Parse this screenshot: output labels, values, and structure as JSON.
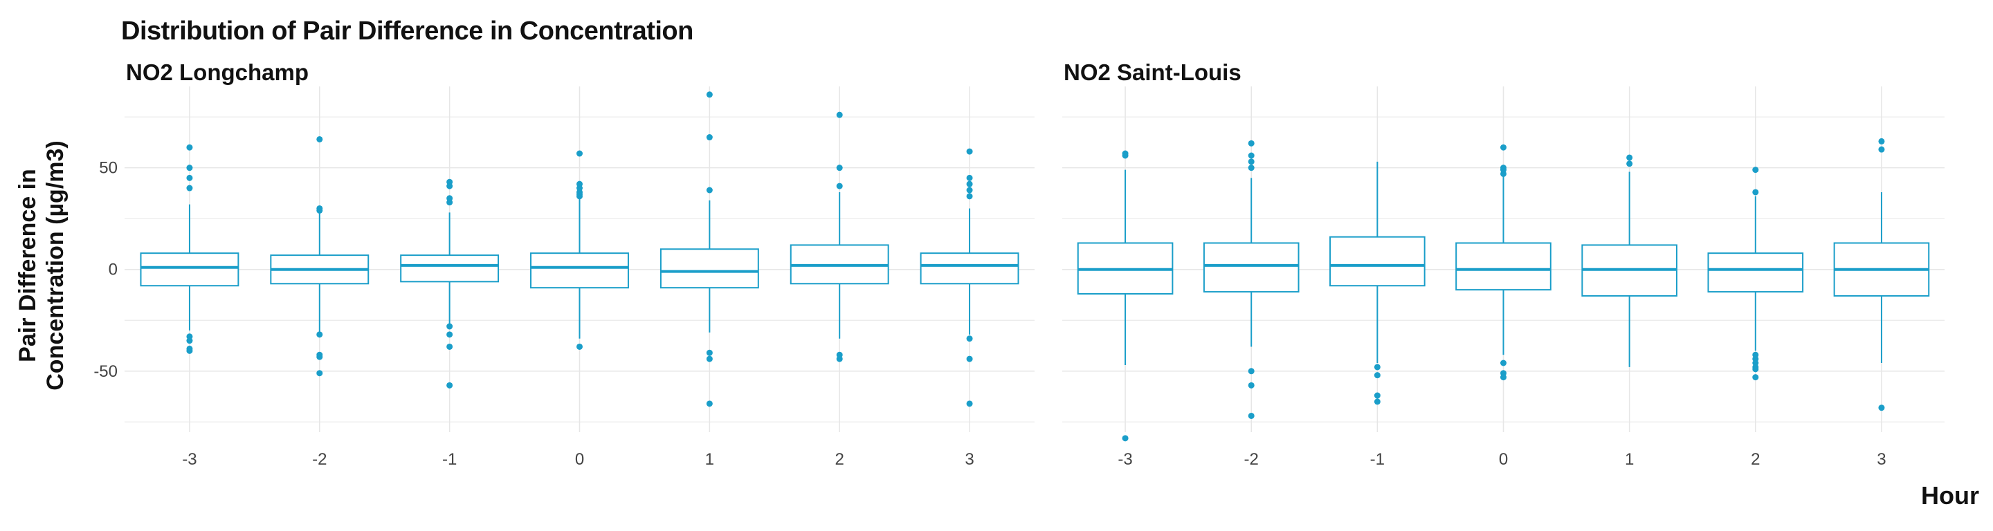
{
  "title": "Distribution of Pair Difference in Concentration",
  "ylabel": "Pair Difference in\nConcentration (µg/m3)",
  "xlabel": "Hour",
  "colors": {
    "accent": "#1a9ec9",
    "grid": "#e6e6e6"
  },
  "chart_data": [
    {
      "type": "box",
      "panel_title": "NO2 Longchamp",
      "categories": [
        "-3",
        "-2",
        "-1",
        "0",
        "1",
        "2",
        "3"
      ],
      "y_ticks": [
        -50,
        0,
        50
      ],
      "ylim": [
        -80,
        90
      ],
      "grid": true,
      "boxes": [
        {
          "q1": -8,
          "median": 1,
          "q3": 8,
          "whisker_low": -30,
          "whisker_high": 32,
          "outliers": [
            60,
            50,
            45,
            40,
            -33,
            -35,
            -39,
            -40
          ]
        },
        {
          "q1": -7,
          "median": 0,
          "q3": 7,
          "whisker_low": -32,
          "whisker_high": 29,
          "outliers": [
            64,
            30,
            29,
            -32,
            -42,
            -43,
            -51
          ]
        },
        {
          "q1": -6,
          "median": 2,
          "q3": 7,
          "whisker_low": -28,
          "whisker_high": 28,
          "outliers": [
            43,
            41,
            35,
            33,
            -28,
            -32,
            -38,
            -57
          ]
        },
        {
          "q1": -9,
          "median": 1,
          "q3": 8,
          "whisker_low": -34,
          "whisker_high": 35,
          "outliers": [
            57,
            42,
            40,
            38,
            37,
            36,
            -38
          ]
        },
        {
          "q1": -9,
          "median": -1,
          "q3": 10,
          "whisker_low": -31,
          "whisker_high": 34,
          "outliers": [
            86,
            65,
            39,
            -41,
            -44,
            -66
          ]
        },
        {
          "q1": -7,
          "median": 2,
          "q3": 12,
          "whisker_low": -34,
          "whisker_high": 38,
          "outliers": [
            76,
            50,
            41,
            -42,
            -44
          ]
        },
        {
          "q1": -7,
          "median": 2,
          "q3": 8,
          "whisker_low": -32,
          "whisker_high": 30,
          "outliers": [
            58,
            45,
            42,
            39,
            36,
            -34,
            -44,
            -66
          ]
        }
      ]
    },
    {
      "type": "box",
      "panel_title": "NO2 Saint-Louis",
      "categories": [
        "-3",
        "-2",
        "-1",
        "0",
        "1",
        "2",
        "3"
      ],
      "y_ticks": [
        -50,
        0,
        50
      ],
      "ylim": [
        -80,
        90
      ],
      "grid": true,
      "boxes": [
        {
          "q1": -12,
          "median": 0,
          "q3": 13,
          "whisker_low": -47,
          "whisker_high": 49,
          "outliers": [
            57,
            56,
            -83
          ]
        },
        {
          "q1": -11,
          "median": 2,
          "q3": 13,
          "whisker_low": -38,
          "whisker_high": 45,
          "outliers": [
            62,
            56,
            53,
            50,
            -50,
            -57,
            -72
          ]
        },
        {
          "q1": -8,
          "median": 2,
          "q3": 16,
          "whisker_low": -46,
          "whisker_high": 53,
          "outliers": [
            -48,
            -52,
            -62,
            -65
          ]
        },
        {
          "q1": -10,
          "median": 0,
          "q3": 13,
          "whisker_low": -42,
          "whisker_high": 46,
          "outliers": [
            60,
            50,
            49,
            47,
            -46,
            -51,
            -53
          ]
        },
        {
          "q1": -13,
          "median": 0,
          "q3": 12,
          "whisker_low": -48,
          "whisker_high": 48,
          "outliers": [
            55,
            52
          ]
        },
        {
          "q1": -11,
          "median": 0,
          "q3": 8,
          "whisker_low": -40,
          "whisker_high": 36,
          "outliers": [
            49,
            38,
            -42,
            -44,
            -46,
            -48,
            -49,
            -53
          ]
        },
        {
          "q1": -13,
          "median": 0,
          "q3": 13,
          "whisker_low": -46,
          "whisker_high": 38,
          "outliers": [
            63,
            59,
            -68
          ]
        }
      ]
    }
  ]
}
